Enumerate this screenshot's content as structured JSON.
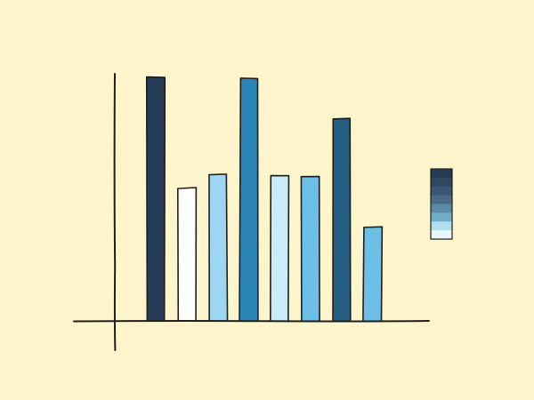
{
  "chart_data": {
    "type": "bar",
    "title": "",
    "xlabel": "",
    "ylabel": "",
    "categories": [
      "",
      "",
      "",
      "",
      "",
      "",
      "",
      ""
    ],
    "values": [
      100,
      54.5,
      60,
      99.5,
      59.5,
      59.5,
      83,
      38.5
    ],
    "ylim": [
      0,
      100
    ],
    "grid": false,
    "tick_labels_shown": false,
    "bar_colors": [
      "#253c58",
      "#ffffff",
      "#9dd6f3",
      "#2b84b6",
      "#c9ecf8",
      "#6cc0e7",
      "#235d81",
      "#6cc0e7"
    ],
    "legend": {
      "placement": "right",
      "swatch_colors": [
        "#253c58",
        "#2f4761",
        "#3b5670",
        "#496b85",
        "#5a8aa4",
        "#74aec6",
        "#aee0ef",
        "#e6f6fb"
      ]
    }
  },
  "colors": {
    "background": "#fff5cc",
    "axis": "#1e1e1e",
    "bar_outline": "#1e1e1e"
  }
}
